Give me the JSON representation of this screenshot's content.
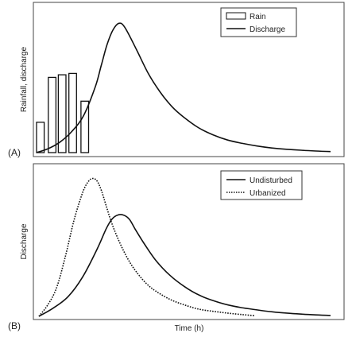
{
  "chart_data": [
    {
      "type": "bar+line",
      "panel_label": "(A)",
      "title": "",
      "xlabel": "",
      "ylabel": "Rainfall, discharge",
      "grid": false,
      "legend_position": "top-right",
      "legend": [
        {
          "name": "Rain",
          "symbol": "bar"
        },
        {
          "name": "Discharge",
          "symbol": "solid-line"
        }
      ],
      "x_range": [
        0,
        100
      ],
      "y_range": [
        0,
        100
      ],
      "rain_bars": [
        {
          "x_start": 0.0,
          "x_end": 2.6,
          "value": 23
        },
        {
          "x_start": 4.0,
          "x_end": 6.6,
          "value": 57
        },
        {
          "x_start": 7.4,
          "x_end": 10.0,
          "value": 59
        },
        {
          "x_start": 11.0,
          "x_end": 13.6,
          "value": 60
        },
        {
          "x_start": 15.1,
          "x_end": 17.7,
          "value": 39
        }
      ],
      "series": [
        {
          "name": "Discharge",
          "style": "solid",
          "x": [
            0,
            4,
            8,
            12,
            16,
            20,
            22,
            24,
            26,
            28,
            30,
            34,
            38,
            42,
            46,
            50,
            55,
            60,
            65,
            70,
            75,
            80,
            85,
            90,
            95,
            100
          ],
          "y": [
            0,
            3,
            8,
            16,
            28,
            50,
            66,
            82,
            93,
            98,
            95,
            78,
            60,
            46,
            35,
            27,
            19,
            13.5,
            9.5,
            7,
            5,
            3.5,
            2.5,
            1.8,
            1.2,
            0.8
          ]
        }
      ]
    },
    {
      "type": "line",
      "panel_label": "(B)",
      "title": "",
      "xlabel": "Time (h)",
      "ylabel": "Discharge",
      "grid": false,
      "legend_position": "top-right",
      "legend": [
        {
          "name": "Undisturbed",
          "symbol": "solid-line"
        },
        {
          "name": "Urbanized",
          "symbol": "dotted-line"
        }
      ],
      "x_range": [
        0,
        100
      ],
      "y_range": [
        0,
        100
      ],
      "series": [
        {
          "name": "Undisturbed",
          "style": "solid",
          "x": [
            0,
            5,
            10,
            15,
            20,
            23,
            25,
            27,
            29,
            31,
            33,
            36,
            40,
            45,
            50,
            55,
            60,
            65,
            70,
            75,
            80,
            85,
            90,
            95,
            100
          ],
          "y": [
            0,
            6,
            14,
            28,
            48,
            62,
            69,
            72,
            72,
            69,
            62,
            52,
            40,
            29,
            21,
            15,
            11,
            8,
            6,
            4.5,
            3.2,
            2.3,
            1.6,
            1,
            0.6
          ]
        },
        {
          "name": "Urbanized",
          "style": "dotted",
          "x": [
            0,
            3,
            6,
            9,
            12,
            15,
            17,
            18.5,
            20,
            21.5,
            23,
            25,
            28,
            31,
            34,
            37,
            40,
            45,
            50,
            55,
            60,
            65,
            70,
            74
          ],
          "y": [
            0,
            8,
            20,
            42,
            68,
            88,
            96,
            98,
            96,
            89,
            79,
            66,
            51,
            39,
            30,
            23,
            18,
            12,
            8,
            5,
            3.5,
            2.2,
            1.2,
            0.5
          ]
        }
      ]
    }
  ]
}
